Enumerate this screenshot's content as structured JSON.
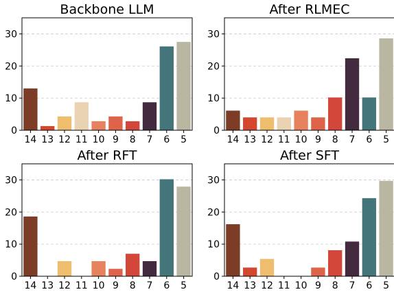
{
  "chart_data": [
    {
      "type": "bar",
      "title": "Backbone LLM",
      "categories": [
        "14",
        "13",
        "12",
        "11",
        "10",
        "9",
        "8",
        "7",
        "6",
        "5"
      ],
      "values": [
        13.0,
        1.3,
        4.3,
        8.7,
        2.8,
        4.3,
        2.8,
        8.7,
        26.1,
        27.5
      ],
      "ylim": [
        0,
        35
      ],
      "yticks": [
        0,
        10,
        20,
        30
      ],
      "grid": true
    },
    {
      "type": "bar",
      "title": "After RLMEC",
      "categories": [
        "14",
        "13",
        "12",
        "11",
        "10",
        "9",
        "8",
        "7",
        "6",
        "5"
      ],
      "values": [
        6.1,
        4.0,
        4.0,
        4.0,
        6.1,
        4.0,
        10.2,
        22.4,
        10.2,
        28.6
      ],
      "ylim": [
        0,
        35
      ],
      "yticks": [
        0,
        10,
        20,
        30
      ],
      "grid": true
    },
    {
      "type": "bar",
      "title": "After RFT",
      "categories": [
        "14",
        "13",
        "12",
        "11",
        "10",
        "9",
        "8",
        "7",
        "6",
        "5"
      ],
      "values": [
        18.6,
        0,
        4.7,
        0,
        4.7,
        2.3,
        7.0,
        4.7,
        30.2,
        27.9
      ],
      "ylim": [
        0,
        35
      ],
      "yticks": [
        0,
        10,
        20,
        30
      ],
      "grid": true
    },
    {
      "type": "bar",
      "title": "After SFT",
      "categories": [
        "14",
        "13",
        "12",
        "11",
        "10",
        "9",
        "8",
        "7",
        "6",
        "5"
      ],
      "values": [
        16.2,
        2.7,
        5.4,
        0,
        0,
        2.7,
        8.1,
        10.8,
        24.3,
        29.7
      ],
      "ylim": [
        0,
        35
      ],
      "yticks": [
        0,
        10,
        20,
        30
      ],
      "grid": true
    }
  ],
  "colors": {
    "bars": [
      "#7d3c25",
      "#d3472f",
      "#eebd6d",
      "#ead3b3",
      "#e6825d",
      "#dd6448",
      "#d3473a",
      "#432a3e",
      "#44757a",
      "#b9b7a1"
    ],
    "grid": "#c8c8c8",
    "axis": "#000000"
  }
}
